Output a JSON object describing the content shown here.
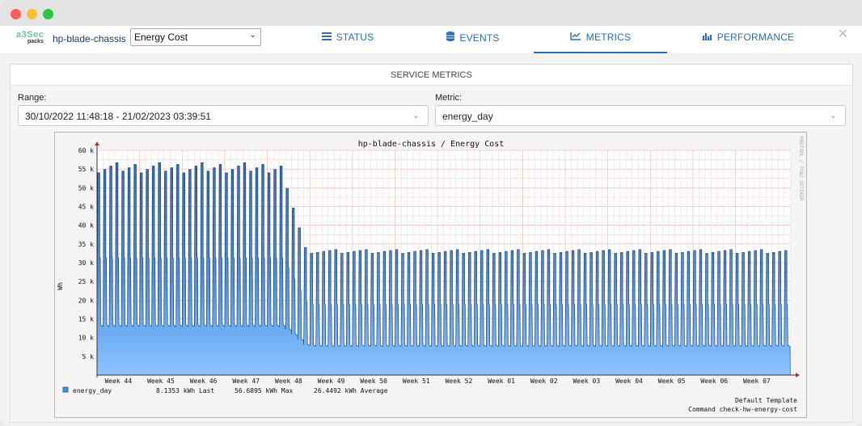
{
  "window": {
    "controls": [
      "close",
      "minimize",
      "maximize"
    ]
  },
  "header": {
    "logo_top": "a3Sec",
    "logo_bottom": "packs",
    "host": "hp-blade-chassis",
    "service_select": "Energy Cost",
    "tabs": [
      {
        "label": "STATUS",
        "icon": "list-icon"
      },
      {
        "label": "EVENTS",
        "icon": "database-icon"
      },
      {
        "label": "METRICS",
        "icon": "line-chart-icon",
        "active": true
      },
      {
        "label": "PERFORMANCE",
        "icon": "bar-chart-icon"
      }
    ],
    "close_icon": "close-icon"
  },
  "panel": {
    "title": "SERVICE METRICS",
    "range_label": "Range:",
    "range_value": "30/10/2022 11:48:18 - 21/02/2023 03:39:51",
    "metric_label": "Metric:",
    "metric_value": "energy_day"
  },
  "chart_data": {
    "type": "area",
    "title": "hp-blade-chassis / Energy Cost",
    "ylabel": "Wh",
    "xlabel": "",
    "ylim": [
      0,
      60000
    ],
    "yticks": [
      "5 k",
      "10 k",
      "15 k",
      "20 k",
      "25 k",
      "30 k",
      "35 k",
      "40 k",
      "45 k",
      "50 k",
      "55 k",
      "60 k"
    ],
    "xticks": [
      "Week 44",
      "Week 45",
      "Week 46",
      "Week 47",
      "Week 48",
      "Week 49",
      "Week 50",
      "Week 51",
      "Week 52",
      "Week 01",
      "Week 02",
      "Week 03",
      "Week 04",
      "Week 05",
      "Week 06",
      "Week 07"
    ],
    "grid": true,
    "color": "#4a90e2",
    "side_text": "RRDTOOL / TOBI OETIKER",
    "series": [
      {
        "name": "energy_day",
        "pattern_phases": [
          {
            "from_week": "Week 44",
            "to_week": "Week 48",
            "hourly_peak_range": [
              54000,
              56700
            ],
            "mid_step": 31500,
            "base": 13500
          },
          {
            "from_week": "Week 48",
            "to_week": "Week 07",
            "hourly_peak_range": [
              32500,
              33500
            ],
            "mid_step": 19000,
            "base": 8000
          }
        ]
      }
    ],
    "legend": {
      "name": "energy_day",
      "last": "8.1353 kWh Last",
      "max": "56.6895 kWh Max",
      "average": "26.4492 kWh Average"
    },
    "footer_line1": "Default Template",
    "footer_line2": "Command check-hw-energy-cost"
  }
}
